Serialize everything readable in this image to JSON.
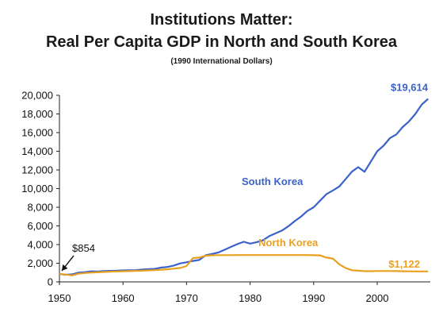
{
  "header": {
    "title": "Institutions Matter:",
    "subtitle": "Real Per Capita GDP in North and South Korea",
    "note": "(1990 International Dollars)"
  },
  "colors": {
    "south": "#3a62c9",
    "north": "#e8a021",
    "axis": "#222222"
  },
  "chart_data": {
    "type": "line",
    "title": "Institutions Matter: Real Per Capita GDP in North and South Korea",
    "xlabel": "",
    "ylabel": "",
    "xlim": [
      1950,
      2008
    ],
    "ylim": [
      0,
      20000
    ],
    "xticks": [
      1950,
      1960,
      1970,
      1980,
      1990,
      2000
    ],
    "yticks": [
      0,
      2000,
      4000,
      6000,
      8000,
      10000,
      12000,
      14000,
      16000,
      18000,
      20000
    ],
    "ytick_labels": [
      "0",
      "2,000",
      "4,000",
      "6,000",
      "8,000",
      "10,000",
      "12,000",
      "14,000",
      "16,000",
      "18,000",
      "20,000"
    ],
    "grid": false,
    "legend": "none",
    "series": [
      {
        "name": "South Korea",
        "x": [
          1950,
          1951,
          1952,
          1953,
          1954,
          1955,
          1956,
          1957,
          1958,
          1959,
          1960,
          1961,
          1962,
          1963,
          1964,
          1965,
          1966,
          1967,
          1968,
          1969,
          1970,
          1971,
          1972,
          1973,
          1974,
          1975,
          1976,
          1977,
          1978,
          1979,
          1980,
          1981,
          1982,
          1983,
          1984,
          1985,
          1986,
          1987,
          1988,
          1989,
          1990,
          1991,
          1992,
          1993,
          1994,
          1995,
          1996,
          1997,
          1998,
          1999,
          2000,
          2001,
          2002,
          2003,
          2004,
          2005,
          2006,
          2007,
          2008
        ],
        "y": [
          854,
          770,
          810,
          1000,
          1050,
          1130,
          1110,
          1170,
          1180,
          1200,
          1230,
          1250,
          1260,
          1320,
          1360,
          1400,
          1530,
          1600,
          1750,
          1980,
          2100,
          2250,
          2350,
          2850,
          3000,
          3150,
          3450,
          3750,
          4050,
          4300,
          4100,
          4250,
          4450,
          4900,
          5200,
          5500,
          5950,
          6500,
          7000,
          7600,
          8000,
          8700,
          9400,
          9800,
          10200,
          11000,
          11800,
          12300,
          11800,
          12900,
          14000,
          14600,
          15400,
          15800,
          16600,
          17200,
          18000,
          19000,
          19614
        ]
      },
      {
        "name": "North Korea",
        "x": [
          1950,
          1951,
          1952,
          1953,
          1954,
          1955,
          1956,
          1957,
          1958,
          1959,
          1960,
          1961,
          1962,
          1963,
          1964,
          1965,
          1966,
          1967,
          1968,
          1969,
          1970,
          1971,
          1972,
          1973,
          1974,
          1975,
          1976,
          1977,
          1978,
          1979,
          1980,
          1981,
          1982,
          1983,
          1984,
          1985,
          1986,
          1987,
          1988,
          1989,
          1990,
          1991,
          1992,
          1993,
          1994,
          1995,
          1996,
          1997,
          1998,
          1999,
          2000,
          2001,
          2002,
          2003,
          2004,
          2005,
          2006,
          2007,
          2008
        ],
        "y": [
          854,
          780,
          700,
          880,
          950,
          1000,
          1030,
          1060,
          1100,
          1120,
          1140,
          1160,
          1180,
          1200,
          1230,
          1260,
          1300,
          1350,
          1420,
          1500,
          1700,
          2550,
          2600,
          2800,
          2850,
          2870,
          2870,
          2870,
          2880,
          2880,
          2880,
          2880,
          2880,
          2880,
          2880,
          2880,
          2880,
          2880,
          2880,
          2880,
          2860,
          2840,
          2600,
          2500,
          1900,
          1500,
          1250,
          1200,
          1150,
          1150,
          1170,
          1170,
          1170,
          1160,
          1140,
          1130,
          1125,
          1122,
          1122
        ]
      }
    ],
    "annotations": [
      {
        "text": "$854",
        "x": 1950,
        "y": 854,
        "arrow": true
      },
      {
        "text": "$19,614",
        "x": 2008,
        "y": 19614,
        "series": "South Korea"
      },
      {
        "text": "$1,122",
        "x": 2008,
        "y": 1122,
        "series": "North Korea"
      }
    ],
    "series_labels": [
      {
        "text": "South Korea",
        "x": 1983.5,
        "y": 10400
      },
      {
        "text": "North Korea",
        "x": 1986,
        "y": 3850
      }
    ]
  }
}
